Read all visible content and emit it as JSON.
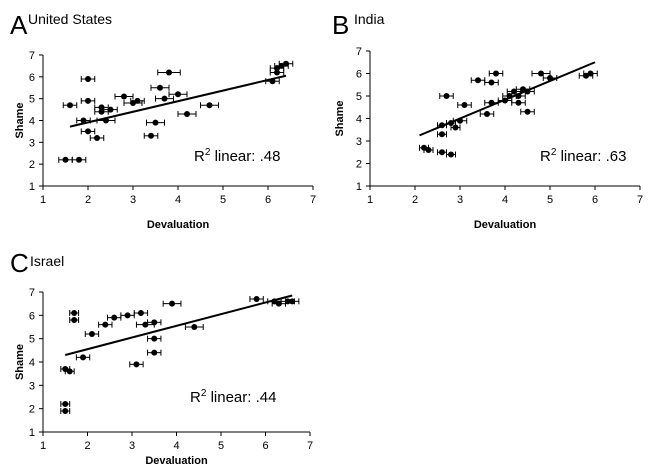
{
  "chart_data": [
    {
      "type": "scatter",
      "panel_letter": "A",
      "title": "United States",
      "xlabel": "Devaluation",
      "ylabel": "Shame",
      "xlim": [
        1,
        7
      ],
      "ylim": [
        1,
        7
      ],
      "xticks": [
        1,
        2,
        3,
        4,
        5,
        6,
        7
      ],
      "yticks": [
        1,
        2,
        3,
        4,
        5,
        6,
        7
      ],
      "grid": false,
      "annotation": {
        "prefix": "R",
        "superscript": "2",
        "text": " linear: .48"
      },
      "fit_line": {
        "x": [
          1.6,
          6.4
        ],
        "y": [
          3.72,
          6.05
        ]
      },
      "points": [
        {
          "x": 1.5,
          "y": 2.2,
          "xerr": 0.15
        },
        {
          "x": 1.8,
          "y": 2.2,
          "xerr": 0.15
        },
        {
          "x": 1.6,
          "y": 4.7,
          "xerr": 0.15
        },
        {
          "x": 1.9,
          "y": 4.0,
          "xerr": 0.15
        },
        {
          "x": 2.0,
          "y": 3.5,
          "xerr": 0.15
        },
        {
          "x": 2.0,
          "y": 4.9,
          "xerr": 0.15
        },
        {
          "x": 2.0,
          "y": 5.9,
          "xerr": 0.15
        },
        {
          "x": 2.2,
          "y": 3.2,
          "xerr": 0.15
        },
        {
          "x": 2.3,
          "y": 4.4,
          "xerr": 0.15
        },
        {
          "x": 2.3,
          "y": 4.6,
          "xerr": 0.15
        },
        {
          "x": 2.4,
          "y": 4.0,
          "xerr": 0.2
        },
        {
          "x": 2.5,
          "y": 4.5,
          "xerr": 0.15
        },
        {
          "x": 2.8,
          "y": 5.1,
          "xerr": 0.2
        },
        {
          "x": 3.0,
          "y": 4.8,
          "xerr": 0.2
        },
        {
          "x": 3.1,
          "y": 4.9,
          "xerr": 0.15
        },
        {
          "x": 3.4,
          "y": 3.3,
          "xerr": 0.15
        },
        {
          "x": 3.5,
          "y": 3.9,
          "xerr": 0.2
        },
        {
          "x": 3.6,
          "y": 5.5,
          "xerr": 0.2
        },
        {
          "x": 3.7,
          "y": 5.0,
          "xerr": 0.2
        },
        {
          "x": 3.8,
          "y": 6.2,
          "xerr": 0.25
        },
        {
          "x": 4.0,
          "y": 5.2,
          "xerr": 0.2
        },
        {
          "x": 4.2,
          "y": 4.3,
          "xerr": 0.2
        },
        {
          "x": 4.7,
          "y": 4.7,
          "xerr": 0.2
        },
        {
          "x": 6.1,
          "y": 5.8,
          "xerr": 0.15
        },
        {
          "x": 6.2,
          "y": 6.2,
          "xerr": 0.15
        },
        {
          "x": 6.2,
          "y": 6.4,
          "xerr": 0.15
        },
        {
          "x": 6.3,
          "y": 6.5,
          "xerr": 0.15
        },
        {
          "x": 6.4,
          "y": 6.6,
          "xerr": 0.15
        }
      ]
    },
    {
      "type": "scatter",
      "panel_letter": "B",
      "title": "India",
      "xlabel": "Devaluation",
      "ylabel": "Shame",
      "xlim": [
        1,
        7
      ],
      "ylim": [
        1,
        7
      ],
      "xticks": [
        1,
        2,
        3,
        4,
        5,
        6,
        7
      ],
      "yticks": [
        1,
        2,
        3,
        4,
        5,
        6,
        7
      ],
      "grid": false,
      "annotation": {
        "prefix": "R",
        "superscript": "2",
        "text": " linear: .63"
      },
      "fit_line": {
        "x": [
          2.1,
          6.0
        ],
        "y": [
          3.25,
          6.5
        ]
      },
      "points": [
        {
          "x": 2.2,
          "y": 2.7,
          "xerr": 0.1
        },
        {
          "x": 2.3,
          "y": 2.6,
          "xerr": 0.1
        },
        {
          "x": 2.6,
          "y": 2.5,
          "xerr": 0.1
        },
        {
          "x": 2.8,
          "y": 2.4,
          "xerr": 0.1
        },
        {
          "x": 2.6,
          "y": 3.3,
          "xerr": 0.1
        },
        {
          "x": 2.6,
          "y": 3.7,
          "xerr": 0.1
        },
        {
          "x": 2.8,
          "y": 3.8,
          "xerr": 0.1
        },
        {
          "x": 2.9,
          "y": 3.6,
          "xerr": 0.1
        },
        {
          "x": 3.0,
          "y": 3.9,
          "xerr": 0.15
        },
        {
          "x": 2.7,
          "y": 5.0,
          "xerr": 0.15
        },
        {
          "x": 3.1,
          "y": 4.6,
          "xerr": 0.15
        },
        {
          "x": 3.4,
          "y": 5.7,
          "xerr": 0.15
        },
        {
          "x": 3.6,
          "y": 4.2,
          "xerr": 0.15
        },
        {
          "x": 3.7,
          "y": 4.7,
          "xerr": 0.15
        },
        {
          "x": 3.7,
          "y": 5.6,
          "xerr": 0.15
        },
        {
          "x": 3.8,
          "y": 6.0,
          "xerr": 0.15
        },
        {
          "x": 4.0,
          "y": 4.8,
          "xerr": 0.15
        },
        {
          "x": 4.1,
          "y": 5.0,
          "xerr": 0.15
        },
        {
          "x": 4.2,
          "y": 5.2,
          "xerr": 0.15
        },
        {
          "x": 4.3,
          "y": 5.0,
          "xerr": 0.15
        },
        {
          "x": 4.3,
          "y": 4.7,
          "xerr": 0.15
        },
        {
          "x": 4.4,
          "y": 5.3,
          "xerr": 0.15
        },
        {
          "x": 4.5,
          "y": 4.3,
          "xerr": 0.15
        },
        {
          "x": 4.5,
          "y": 5.2,
          "xerr": 0.15
        },
        {
          "x": 4.8,
          "y": 6.0,
          "xerr": 0.2
        },
        {
          "x": 5.0,
          "y": 5.8,
          "xerr": 0.15
        },
        {
          "x": 5.8,
          "y": 5.9,
          "xerr": 0.15
        },
        {
          "x": 5.9,
          "y": 6.0,
          "xerr": 0.15
        }
      ]
    },
    {
      "type": "scatter",
      "panel_letter": "C",
      "title": "Israel",
      "xlabel": "Devaluation",
      "ylabel": "Shame",
      "xlim": [
        1,
        7
      ],
      "ylim": [
        1,
        7
      ],
      "xticks": [
        1,
        2,
        3,
        4,
        5,
        6,
        7
      ],
      "yticks": [
        1,
        2,
        3,
        4,
        5,
        6,
        7
      ],
      "grid": false,
      "annotation": {
        "prefix": "R",
        "superscript": "2",
        "text": " linear: .44"
      },
      "fit_line": {
        "x": [
          1.5,
          6.6
        ],
        "y": [
          4.3,
          6.85
        ]
      },
      "points": [
        {
          "x": 1.5,
          "y": 1.9,
          "xerr": 0.1
        },
        {
          "x": 1.5,
          "y": 2.2,
          "xerr": 0.1
        },
        {
          "x": 1.5,
          "y": 3.7,
          "xerr": 0.1
        },
        {
          "x": 1.6,
          "y": 3.6,
          "xerr": 0.1
        },
        {
          "x": 1.7,
          "y": 6.1,
          "xerr": 0.1
        },
        {
          "x": 1.7,
          "y": 5.8,
          "xerr": 0.1
        },
        {
          "x": 1.9,
          "y": 4.2,
          "xerr": 0.15
        },
        {
          "x": 2.1,
          "y": 5.2,
          "xerr": 0.15
        },
        {
          "x": 2.4,
          "y": 5.6,
          "xerr": 0.15
        },
        {
          "x": 2.6,
          "y": 5.9,
          "xerr": 0.15
        },
        {
          "x": 2.9,
          "y": 6.0,
          "xerr": 0.15
        },
        {
          "x": 3.1,
          "y": 3.9,
          "xerr": 0.15
        },
        {
          "x": 3.2,
          "y": 6.1,
          "xerr": 0.15
        },
        {
          "x": 3.3,
          "y": 5.6,
          "xerr": 0.2
        },
        {
          "x": 3.5,
          "y": 5.7,
          "xerr": 0.15
        },
        {
          "x": 3.5,
          "y": 4.4,
          "xerr": 0.15
        },
        {
          "x": 3.5,
          "y": 5.0,
          "xerr": 0.15
        },
        {
          "x": 3.9,
          "y": 6.5,
          "xerr": 0.2
        },
        {
          "x": 4.4,
          "y": 5.5,
          "xerr": 0.2
        },
        {
          "x": 5.8,
          "y": 6.7,
          "xerr": 0.15
        },
        {
          "x": 6.2,
          "y": 6.6,
          "xerr": 0.15
        },
        {
          "x": 6.3,
          "y": 6.5,
          "xerr": 0.15
        },
        {
          "x": 6.5,
          "y": 6.6,
          "xerr": 0.15
        },
        {
          "x": 6.6,
          "y": 6.6,
          "xerr": 0.15
        }
      ]
    }
  ]
}
